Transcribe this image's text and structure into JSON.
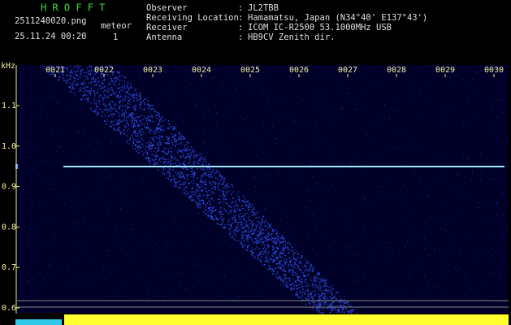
{
  "header": {
    "app_title": "H R O F F T",
    "filename": "2511240020.png",
    "datetime": "25.11.24 00:20",
    "count_label": "meteor",
    "count": "1",
    "fields": [
      {
        "label": "Observer",
        "sep": ":",
        "value": "JL2TBB"
      },
      {
        "label": "Receiving Location",
        "sep": ":",
        "value": "Hamamatsu, Japan (N34°40' E137°43')"
      },
      {
        "label": "Receiver",
        "sep": ":",
        "value": "ICOM IC-R2500 53.1000MHz USB"
      },
      {
        "label": "Antenna",
        "sep": ":",
        "value": "HB9CV Zenith dir."
      }
    ]
  },
  "plot": {
    "y_unit": "kHz",
    "y_labels": [
      "1.1",
      "1.0",
      "0.9",
      "0.8",
      "0.7",
      "0.6"
    ],
    "x_labels": [
      "0021",
      "0022",
      "0023",
      "0024",
      "0025",
      "0026",
      "0027",
      "0028",
      "0029",
      "0030"
    ]
  }
}
